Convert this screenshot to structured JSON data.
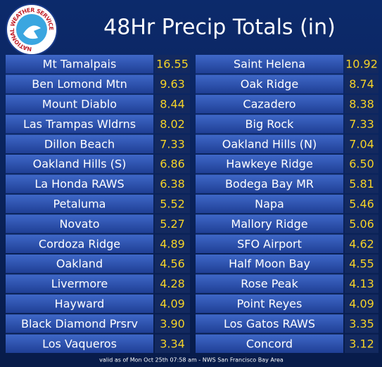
{
  "header": {
    "title": "48Hr Precip Totals (in)",
    "logo_text": "NATIONAL WEATHER SERVICE"
  },
  "table": {
    "left": [
      [
        "Mt Tamalpais",
        "16.55"
      ],
      [
        "Ben Lomond Mtn",
        "9.63"
      ],
      [
        "Mount Diablo",
        "8.44"
      ],
      [
        "Las Trampas Wldrns",
        "8.02"
      ],
      [
        "Dillon Beach",
        "7.33"
      ],
      [
        "Oakland Hills (S)",
        "6.86"
      ],
      [
        "La Honda RAWS",
        "6.38"
      ],
      [
        "Petaluma",
        "5.52"
      ],
      [
        "Novato",
        "5.27"
      ],
      [
        "Cordoza Ridge",
        "4.89"
      ],
      [
        "Oakland",
        "4.56"
      ],
      [
        "Livermore",
        "4.28"
      ],
      [
        "Hayward",
        "4.09"
      ],
      [
        "Black Diamond Prsrv",
        "3.90"
      ],
      [
        "Los Vaqueros",
        "3.34"
      ]
    ],
    "right": [
      [
        "Saint Helena",
        "10.92"
      ],
      [
        "Oak Ridge",
        "8.74"
      ],
      [
        "Cazadero",
        "8.38"
      ],
      [
        "Big Rock",
        "7.33"
      ],
      [
        "Oakland Hills (N)",
        "7.04"
      ],
      [
        "Hawkeye Ridge",
        "6.50"
      ],
      [
        "Bodega Bay MR",
        "5.81"
      ],
      [
        "Napa",
        "5.46"
      ],
      [
        "Mallory Ridge",
        "5.06"
      ],
      [
        "SFO Airport",
        "4.62"
      ],
      [
        "Half Moon Bay",
        "4.55"
      ],
      [
        "Rose Peak",
        "4.13"
      ],
      [
        "Point Reyes",
        "4.09"
      ],
      [
        "Los Gatos RAWS",
        "3.35"
      ],
      [
        "Concord",
        "3.12"
      ]
    ]
  },
  "footer": "valid as of Mon Oct 25th 07:58 am - NWS San Francisco Bay Area"
}
